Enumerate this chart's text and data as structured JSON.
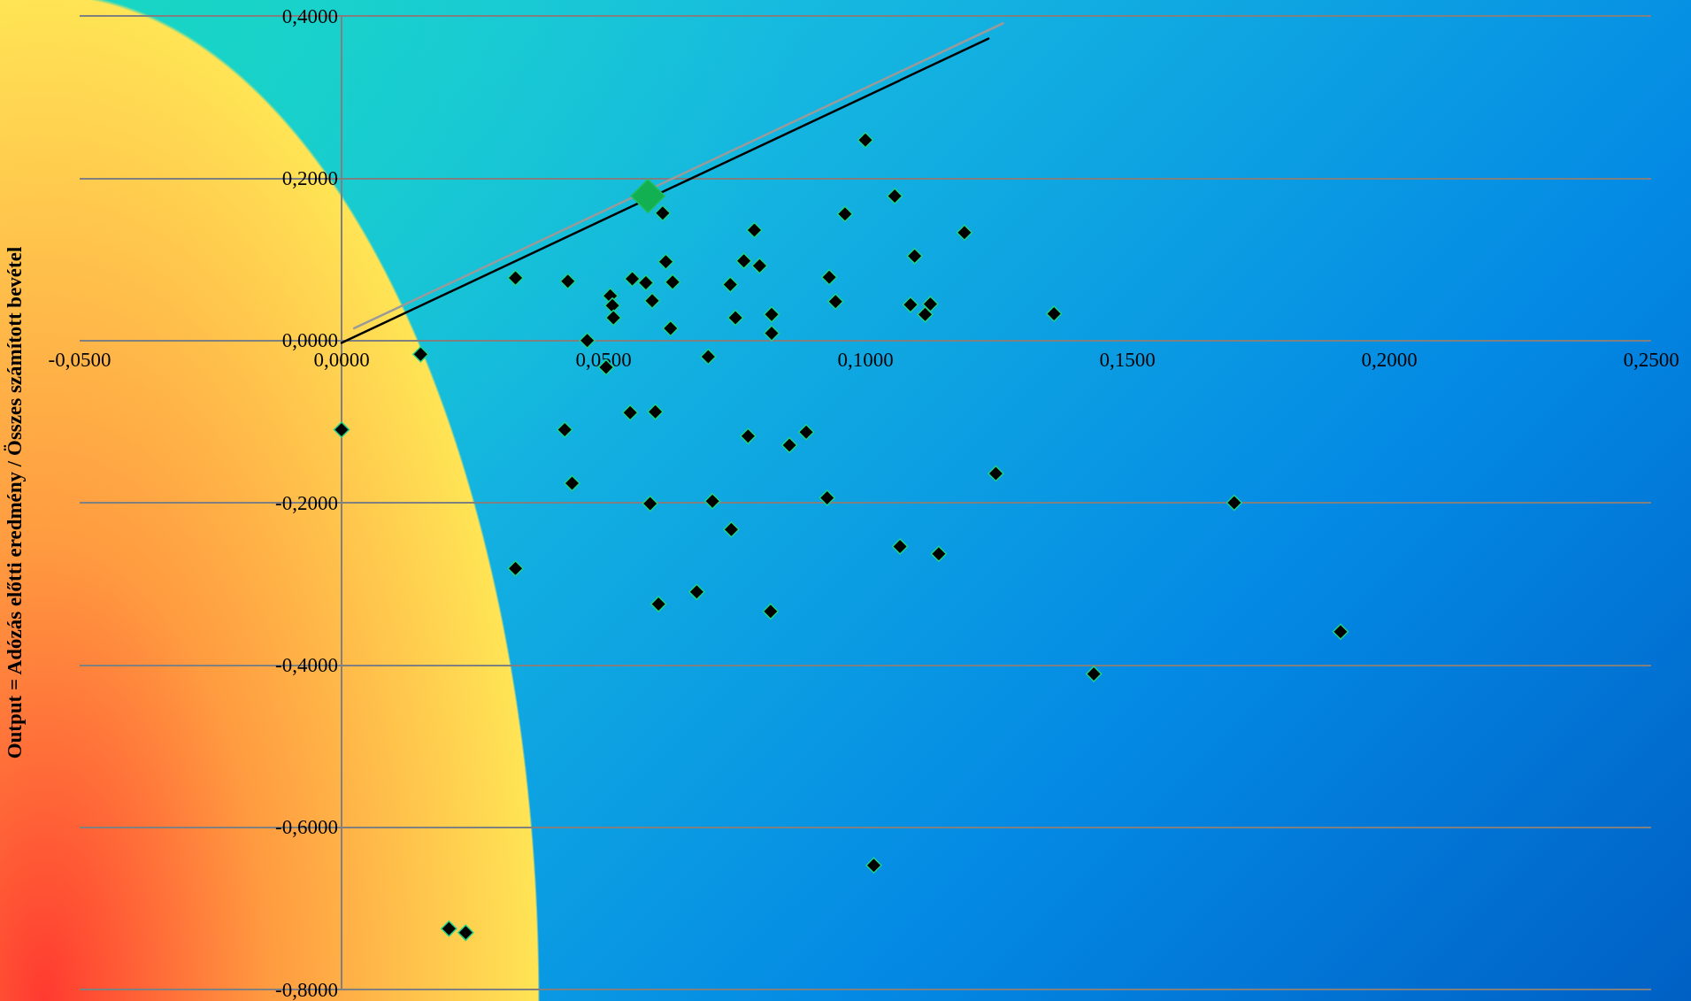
{
  "chart_data": {
    "type": "scatter",
    "ylabel": "Output = Adózás előtti eredmény / Összes számított bevétel",
    "xlim": [
      -0.05,
      0.25
    ],
    "ylim": [
      -0.8,
      0.4
    ],
    "xticks": [
      {
        "value": -0.05,
        "label": "-0,0500"
      },
      {
        "value": 0,
        "label": "0,0000"
      },
      {
        "value": 0.05,
        "label": "0,0500"
      },
      {
        "value": 0.1,
        "label": "0,1000"
      },
      {
        "value": 0.15,
        "label": "0,1500"
      },
      {
        "value": 0.2,
        "label": "0,2000"
      },
      {
        "value": 0.25,
        "label": "0,2500"
      }
    ],
    "yticks": [
      {
        "value": -0.8,
        "label": "-0,8000"
      },
      {
        "value": -0.6,
        "label": "-0,6000"
      },
      {
        "value": -0.4,
        "label": "-0,4000"
      },
      {
        "value": -0.2,
        "label": "-0,2000"
      },
      {
        "value": 0,
        "label": "0,0000"
      },
      {
        "value": 0.2,
        "label": "0,2000"
      },
      {
        "value": 0.4,
        "label": "0,4000"
      }
    ],
    "grid": "y",
    "marker": "diamond",
    "series": [
      {
        "color": "#000000",
        "x": [
          0,
          0.0151,
          0.0332,
          0.0332,
          0.0432,
          0.0426,
          0.044,
          0.0469,
          0.0513,
          0.0517,
          0.0519,
          0.0505,
          0.0555,
          0.0581,
          0.0593,
          0.0551,
          0.0599,
          0.0589,
          0.0605,
          0.0613,
          0.0619,
          0.0632,
          0.0628,
          0.0678,
          0.07,
          0.0708,
          0.0742,
          0.0752,
          0.0744,
          0.0768,
          0.0788,
          0.0798,
          0.0776,
          0.0821,
          0.0821,
          0.0819,
          0.0855,
          0.0887,
          0.0927,
          0.0931,
          0.0943,
          0.0961,
          0.1,
          0.1016,
          0.1056,
          0.1066,
          0.1086,
          0.1094,
          0.1114,
          0.1124,
          0.114,
          0.1189,
          0.1249,
          0.136,
          0.1436,
          0.1704,
          0.1907,
          0.0205,
          0.0237
        ],
        "values": [
          -0.11,
          -0.017,
          0.077,
          -0.281,
          0.073,
          -0.11,
          -0.176,
          0,
          0.055,
          0.043,
          0.028,
          -0.033,
          0.076,
          0.071,
          0.049,
          -0.089,
          -0.088,
          -0.201,
          -0.325,
          0.157,
          0.097,
          0.072,
          0.015,
          -0.31,
          -0.02,
          -0.198,
          0.069,
          0.028,
          -0.233,
          0.098,
          0.136,
          0.092,
          -0.118,
          0.032,
          0.009,
          -0.334,
          -0.129,
          -0.113,
          -0.194,
          0.078,
          0.048,
          0.156,
          0.247,
          -0.647,
          0.178,
          -0.254,
          0.044,
          0.104,
          0.032,
          0.045,
          -0.263,
          0.133,
          -0.164,
          0.033,
          -0.411,
          -0.2,
          -0.359,
          -0.725,
          -0.73
        ]
      },
      {
        "color": "#12b050",
        "x": [
          0.0585
        ],
        "values": [
          0.178
        ]
      },
      {
        "type": "line",
        "color": "#000000",
        "marker": "none",
        "x": [
          0,
          0.1235
        ],
        "values": [
          -0.003,
          0.372
        ]
      },
      {
        "type": "line",
        "color": "#9a9a9a",
        "marker": "none",
        "x": [
          0.0024,
          0.1263
        ],
        "values": [
          0.015,
          0.391
        ]
      }
    ]
  }
}
